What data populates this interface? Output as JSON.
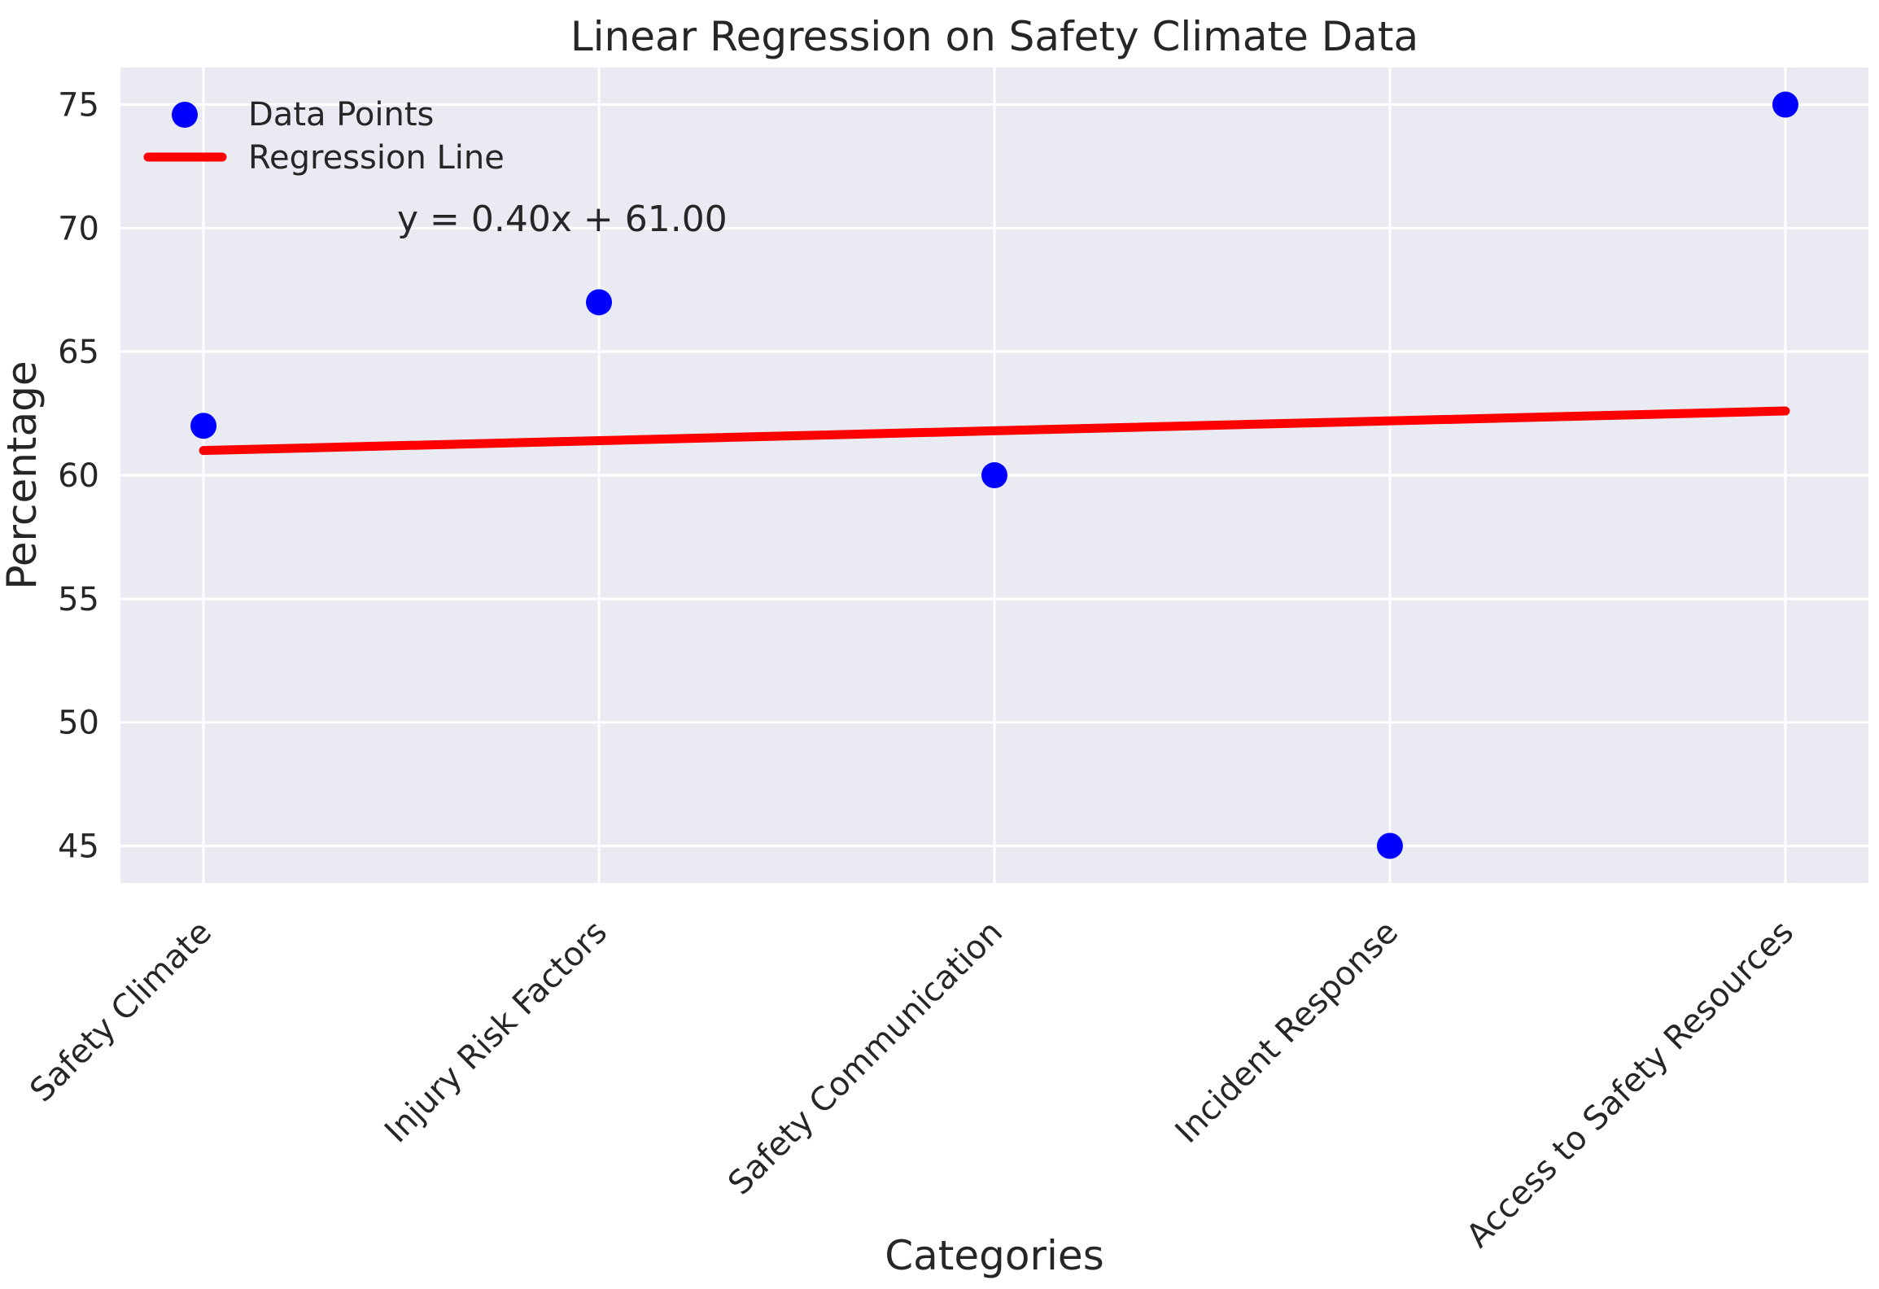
{
  "chart_data": {
    "type": "scatter",
    "title": "Linear Regression on Safety Climate Data",
    "xlabel": "Categories",
    "ylabel": "Percentage",
    "categories": [
      "Safety Climate",
      "Injury Risk Factors",
      "Safety Communication",
      "Incident Response",
      "Access to Safety Resources"
    ],
    "values": [
      62,
      67,
      60,
      45,
      75
    ],
    "yticks": [
      45,
      50,
      55,
      60,
      65,
      70,
      75
    ],
    "ylim": [
      43.5,
      76.5
    ],
    "xlim": [
      -0.21,
      4.21
    ],
    "grid": true,
    "legend_position": "upper left",
    "regression": {
      "slope": 0.4,
      "intercept": 61.0,
      "equation_label": "y = 0.40x + 61.00",
      "x_start": 0,
      "x_end": 4
    },
    "legend": [
      {
        "label": "Data Points",
        "swatch": "marker"
      },
      {
        "label": "Regression Line",
        "swatch": "line"
      }
    ],
    "colors": {
      "points": "#0000ff",
      "regression_line": "#ff0000",
      "equation_text": "#ff0000",
      "axes_background": "#e9eaf2",
      "gridlines": "#ffffff",
      "text": "#262626",
      "figure_background": "#ffffff"
    }
  }
}
